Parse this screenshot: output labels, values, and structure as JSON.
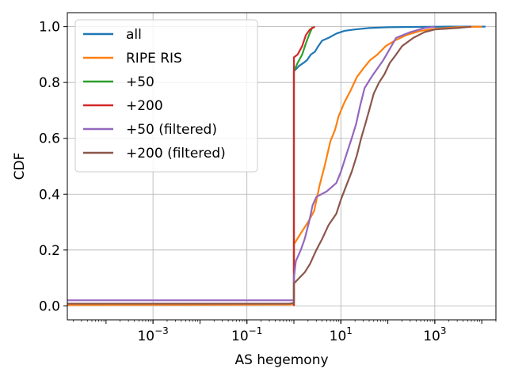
{
  "chart_data": {
    "type": "line",
    "title": "",
    "xlabel": "AS hegemony",
    "ylabel": "CDF",
    "x_scale": "log",
    "xlim": [
      1.5e-05,
      20000
    ],
    "ylim": [
      -0.05,
      1.05
    ],
    "grid": true,
    "legend_position": "top-left",
    "x_ticks": [
      {
        "value": 0.001,
        "base": "10",
        "exp": "−3"
      },
      {
        "value": 0.1,
        "base": "10",
        "exp": "−1"
      },
      {
        "value": 10,
        "base": "10",
        "exp": "1"
      },
      {
        "value": 1000,
        "base": "10",
        "exp": "3"
      }
    ],
    "y_ticks": [
      {
        "value": 0.0,
        "label": "0.0"
      },
      {
        "value": 0.2,
        "label": "0.2"
      },
      {
        "value": 0.4,
        "label": "0.4"
      },
      {
        "value": 0.6,
        "label": "0.6"
      },
      {
        "value": 0.8,
        "label": "0.8"
      },
      {
        "value": 1.0,
        "label": "1.0"
      }
    ],
    "series": [
      {
        "name": "all",
        "color": "#1f77b4",
        "points": [
          [
            1.5e-05,
            0.005
          ],
          [
            0.9,
            0.008
          ],
          [
            1.0,
            0.01
          ],
          [
            1.0,
            0.84
          ],
          [
            1.3,
            0.86
          ],
          [
            1.6,
            0.87
          ],
          [
            1.9,
            0.88
          ],
          [
            2.3,
            0.9
          ],
          [
            2.8,
            0.91
          ],
          [
            3.3,
            0.93
          ],
          [
            4.0,
            0.95
          ],
          [
            5.5,
            0.96
          ],
          [
            8.0,
            0.975
          ],
          [
            12,
            0.985
          ],
          [
            20,
            0.99
          ],
          [
            40,
            0.995
          ],
          [
            100,
            0.998
          ],
          [
            400,
            0.999
          ],
          [
            2000,
            1.0
          ],
          [
            12000,
            1.0
          ]
        ]
      },
      {
        "name": "RIPE RIS",
        "color": "#ff7f0e",
        "points": [
          [
            1.5e-05,
            0.003
          ],
          [
            0.8,
            0.005
          ],
          [
            1.0,
            0.006
          ],
          [
            1.0,
            0.22
          ],
          [
            1.4,
            0.26
          ],
          [
            2.0,
            0.3
          ],
          [
            2.7,
            0.34
          ],
          [
            3.5,
            0.43
          ],
          [
            4.5,
            0.5
          ],
          [
            6.0,
            0.59
          ],
          [
            7.5,
            0.63
          ],
          [
            9.0,
            0.68
          ],
          [
            12,
            0.73
          ],
          [
            16,
            0.77
          ],
          [
            22,
            0.82
          ],
          [
            30,
            0.85
          ],
          [
            42,
            0.88
          ],
          [
            60,
            0.9
          ],
          [
            90,
            0.93
          ],
          [
            140,
            0.95
          ],
          [
            250,
            0.97
          ],
          [
            500,
            0.985
          ],
          [
            1000,
            0.992
          ],
          [
            3000,
            0.998
          ],
          [
            10000,
            1.0
          ]
        ]
      },
      {
        "name": "+50",
        "color": "#2ca02c",
        "points": [
          [
            1.0,
            0.0
          ],
          [
            1.0,
            0.84
          ],
          [
            1.2,
            0.87
          ],
          [
            1.5,
            0.9
          ],
          [
            1.8,
            0.94
          ],
          [
            2.1,
            0.97
          ],
          [
            2.5,
            1.0
          ]
        ]
      },
      {
        "name": "+200",
        "color": "#d62728",
        "points": [
          [
            1.0,
            0.0
          ],
          [
            1.0,
            0.89
          ],
          [
            1.2,
            0.9
          ],
          [
            1.5,
            0.93
          ],
          [
            1.8,
            0.97
          ],
          [
            2.2,
            0.99
          ],
          [
            2.8,
            1.0
          ]
        ]
      },
      {
        "name": "+50 (filtered)",
        "color": "#9467bd",
        "points": [
          [
            1.5e-05,
            0.02
          ],
          [
            0.9,
            0.02
          ],
          [
            1.0,
            0.02
          ],
          [
            1.0,
            0.1
          ],
          [
            1.1,
            0.16
          ],
          [
            1.4,
            0.2
          ],
          [
            1.7,
            0.24
          ],
          [
            2.1,
            0.3
          ],
          [
            2.5,
            0.36
          ],
          [
            3.0,
            0.39
          ],
          [
            5.0,
            0.41
          ],
          [
            8.0,
            0.44
          ],
          [
            10,
            0.48
          ],
          [
            13,
            0.54
          ],
          [
            17,
            0.6
          ],
          [
            21,
            0.65
          ],
          [
            26,
            0.72
          ],
          [
            32,
            0.78
          ],
          [
            45,
            0.82
          ],
          [
            60,
            0.85
          ],
          [
            80,
            0.88
          ],
          [
            110,
            0.92
          ],
          [
            150,
            0.96
          ],
          [
            300,
            0.98
          ],
          [
            600,
            0.995
          ],
          [
            1000,
            1.0
          ]
        ]
      },
      {
        "name": "+200 (filtered)",
        "color": "#8c564b",
        "points": [
          [
            1.5e-05,
            0.008
          ],
          [
            0.8,
            0.008
          ],
          [
            1.0,
            0.01
          ],
          [
            1.0,
            0.08
          ],
          [
            1.3,
            0.1
          ],
          [
            1.7,
            0.12
          ],
          [
            2.2,
            0.15
          ],
          [
            3.0,
            0.2
          ],
          [
            4.0,
            0.24
          ],
          [
            5.5,
            0.29
          ],
          [
            8.0,
            0.33
          ],
          [
            10,
            0.38
          ],
          [
            13,
            0.43
          ],
          [
            17,
            0.48
          ],
          [
            22,
            0.54
          ],
          [
            27,
            0.6
          ],
          [
            33,
            0.65
          ],
          [
            40,
            0.7
          ],
          [
            50,
            0.76
          ],
          [
            65,
            0.8
          ],
          [
            85,
            0.83
          ],
          [
            110,
            0.87
          ],
          [
            150,
            0.9
          ],
          [
            200,
            0.93
          ],
          [
            350,
            0.96
          ],
          [
            600,
            0.98
          ],
          [
            1000,
            0.99
          ],
          [
            3000,
            0.995
          ],
          [
            6000,
            1.0
          ]
        ]
      }
    ]
  }
}
